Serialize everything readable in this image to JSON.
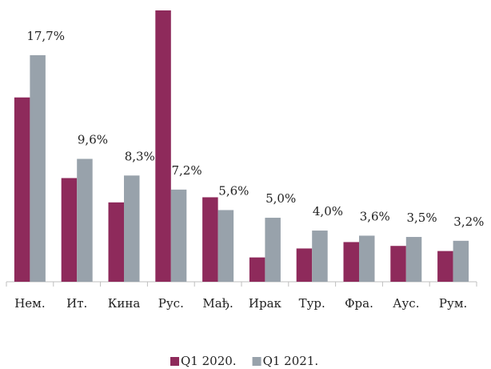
{
  "chart_data": {
    "type": "bar",
    "categories": [
      "Нем.",
      "Ит.",
      "Кина",
      "Рус.",
      "Мађ.",
      "Ирак",
      "Тур.",
      "Фра.",
      "Аус.",
      "Рум."
    ],
    "series": [
      {
        "name": "Q1 2020.",
        "color": "#8e2a5b",
        "values": [
          14.4,
          8.1,
          6.2,
          21.2,
          6.6,
          1.9,
          2.6,
          3.1,
          2.8,
          2.4
        ]
      },
      {
        "name": "Q1 2021.",
        "color": "#98a2ab",
        "values": [
          17.7,
          9.6,
          8.3,
          7.2,
          5.6,
          5.0,
          4.0,
          3.6,
          3.5,
          3.2
        ],
        "value_labels": [
          "17,7%",
          "9,6%",
          "8,3%",
          "7,2%",
          "5,6%",
          "5,0%",
          "4,0%",
          "3,6%",
          "3,5%",
          "3,2%"
        ]
      }
    ],
    "legend": "bottom"
  }
}
